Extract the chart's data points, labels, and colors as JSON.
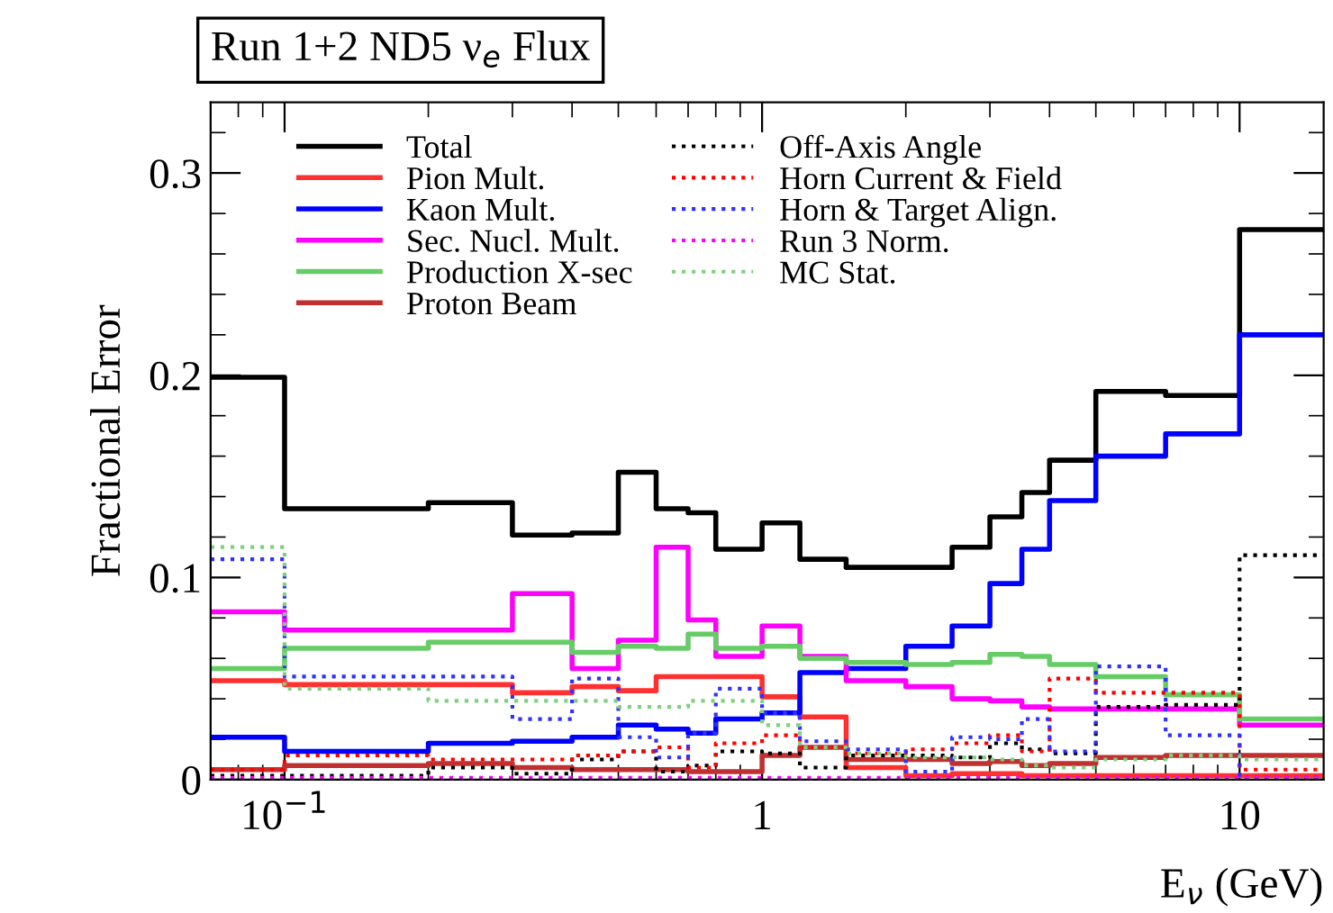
{
  "chart_data": {
    "type": "step",
    "title": "Run 1+2 ND5 ν$_{e}$ Flux",
    "xlabel": "E$_{ν}$ (GeV)",
    "ylabel": "Fractional Error",
    "log": "x",
    "xlim": [
      0.07,
      15
    ],
    "xticks": [
      {
        "value": 0.1,
        "label": "10$^{−1}$"
      },
      1,
      10
    ],
    "ylim": [
      0,
      0.335
    ],
    "yticks": [
      0,
      0.1,
      0.2,
      0.3
    ],
    "x": [
      0.07,
      0.1,
      0.2,
      0.3,
      0.4,
      0.5,
      0.6,
      0.7,
      0.8,
      1.0,
      1.2,
      1.5,
      2.0,
      2.5,
      3.0,
      3.5,
      4.0,
      5.0,
      7.0,
      10,
      15
    ],
    "legend": "top left",
    "grid": false,
    "series": [
      {
        "name": "Total",
        "color": "#000000",
        "line_style": "solid",
        "values": [
          0.199,
          0.134,
          0.137,
          0.121,
          0.122,
          0.152,
          0.134,
          0.132,
          0.114,
          0.127,
          0.109,
          0.105,
          0.105,
          0.115,
          0.13,
          0.142,
          0.158,
          0.192,
          0.19,
          0.272,
          0.272
        ]
      },
      {
        "name": "Pion Mult.",
        "color": "#ff3030",
        "line_style": "solid",
        "values": [
          0.049,
          0.047,
          0.047,
          0.043,
          0.046,
          0.044,
          0.051,
          0.051,
          0.051,
          0.041,
          0.031,
          0.006,
          0.002,
          0.003,
          0.003,
          0.002,
          0.002,
          0.002,
          0.002,
          0.002,
          0.002
        ]
      },
      {
        "name": "Kaon Mult.",
        "color": "#0000ff",
        "line_style": "solid",
        "values": [
          0.021,
          0.014,
          0.018,
          0.019,
          0.021,
          0.027,
          0.025,
          0.023,
          0.03,
          0.033,
          0.053,
          0.055,
          0.066,
          0.076,
          0.097,
          0.114,
          0.138,
          0.16,
          0.171,
          0.22,
          0.22
        ]
      },
      {
        "name": "Sec. Nucl. Mult.",
        "color": "#ff00ff",
        "line_style": "solid",
        "values": [
          0.083,
          0.074,
          0.074,
          0.092,
          0.055,
          0.069,
          0.115,
          0.079,
          0.061,
          0.076,
          0.061,
          0.049,
          0.046,
          0.04,
          0.039,
          0.036,
          0.035,
          0.035,
          0.035,
          0.027,
          0.027
        ]
      },
      {
        "name": "Production X-sec",
        "color": "#66cc66",
        "line_style": "solid",
        "values": [
          0.055,
          0.065,
          0.068,
          0.068,
          0.063,
          0.066,
          0.065,
          0.072,
          0.065,
          0.066,
          0.06,
          0.058,
          0.057,
          0.058,
          0.062,
          0.061,
          0.057,
          0.051,
          0.042,
          0.03,
          0.03
        ]
      },
      {
        "name": "Proton Beam",
        "color": "#c03030",
        "line_style": "solid",
        "values": [
          0.005,
          0.007,
          0.008,
          0.006,
          0.005,
          0.005,
          0.005,
          0.004,
          0.004,
          0.012,
          0.016,
          0.01,
          0.01,
          0.008,
          0.009,
          0.007,
          0.008,
          0.011,
          0.012,
          0.012,
          0.012
        ]
      },
      {
        "name": "Off-Axis Angle",
        "color": "#000000",
        "line_style": "dotted",
        "values": [
          0.002,
          0.002,
          0.006,
          0.003,
          0.01,
          0.014,
          0.004,
          0.007,
          0.014,
          0.013,
          0.006,
          0.012,
          0.012,
          0.011,
          0.018,
          0.015,
          0.013,
          0.036,
          0.037,
          0.111,
          0.111
        ]
      },
      {
        "name": "Horn Current & Field",
        "color": "#ff0000",
        "line_style": "dotted",
        "values": [
          0.005,
          0.012,
          0.01,
          0.01,
          0.012,
          0.014,
          0.016,
          0.006,
          0.018,
          0.022,
          0.016,
          0.013,
          0.015,
          0.018,
          0.022,
          0.014,
          0.05,
          0.043,
          0.043,
          0.005,
          0.005
        ]
      },
      {
        "name": "Horn & Target Align.",
        "color": "#3030ff",
        "line_style": "dotted",
        "values": [
          0.109,
          0.051,
          0.051,
          0.03,
          0.05,
          0.021,
          0.011,
          0.023,
          0.045,
          0.033,
          0.019,
          0.015,
          0.004,
          0.021,
          0.02,
          0.03,
          0.014,
          0.056,
          0.022,
          0.001,
          0.001
        ]
      },
      {
        "name": "Run 3 Norm.",
        "color": "#ff00ff",
        "line_style": "dotted",
        "values": [
          0.001,
          0.001,
          0.001,
          0.001,
          0.001,
          0.001,
          0.001,
          0.001,
          0.001,
          0.001,
          0.001,
          0.001,
          0.001,
          0.001,
          0.001,
          0.001,
          0.001,
          0.001,
          0.001,
          0.001,
          0.001
        ]
      },
      {
        "name": "MC Stat.",
        "color": "#80d080",
        "line_style": "dotted",
        "values": [
          0.115,
          0.045,
          0.039,
          0.039,
          0.039,
          0.036,
          0.036,
          0.039,
          0.039,
          0.027,
          0.016,
          0.013,
          0.011,
          0.011,
          0.01,
          0.007,
          0.006,
          0.01,
          0.012,
          0.01,
          0.01
        ]
      }
    ]
  }
}
